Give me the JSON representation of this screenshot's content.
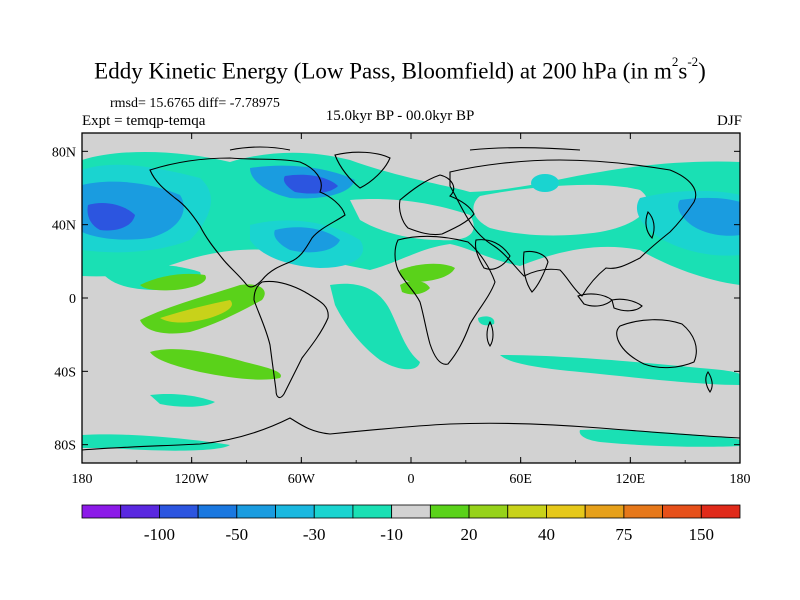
{
  "title": {
    "prefix": "Eddy Kinetic Energy (Low Pass, Bloomfield) at 200 hPa (in m",
    "sup1": "2",
    "mid": "s",
    "sup2": "-2",
    "suffix": ")"
  },
  "stats": "rmsd= 15.6765 diff= -7.78975",
  "expt": "Expt = temqp-temqa",
  "period": "15.0kyr BP - 00.0kyr BP",
  "season": "DJF",
  "axes": {
    "x_ticks": [
      "180",
      "120W",
      "60W",
      "0",
      "60E",
      "120E",
      "180"
    ],
    "y_ticks": [
      "80N",
      "40N",
      "0",
      "40S",
      "80S"
    ]
  },
  "colorbar": {
    "colors": [
      "#8C1AE8",
      "#5A28E0",
      "#2C55E0",
      "#1A78E0",
      "#1A9CE0",
      "#1AB8E0",
      "#1AD4D0",
      "#1AE0B4",
      "#D2D2D2",
      "#5AD21A",
      "#96D21A",
      "#C8D21A",
      "#E6C81A",
      "#E6A01A",
      "#E6781A",
      "#E6501A",
      "#E02A1A"
    ],
    "labels": [
      "-100",
      "-50",
      "-30",
      "-10",
      "20",
      "40",
      "75",
      "150"
    ]
  },
  "legend_colors": {
    "ocean_gray": "#D2D2D2",
    "blue_dark": "#2C55E0",
    "blue_mid": "#1A9CE0",
    "cyan": "#1AD4D0",
    "teal": "#1AE0B4",
    "green": "#5AD21A",
    "yellow_green": "#C8D21A"
  }
}
